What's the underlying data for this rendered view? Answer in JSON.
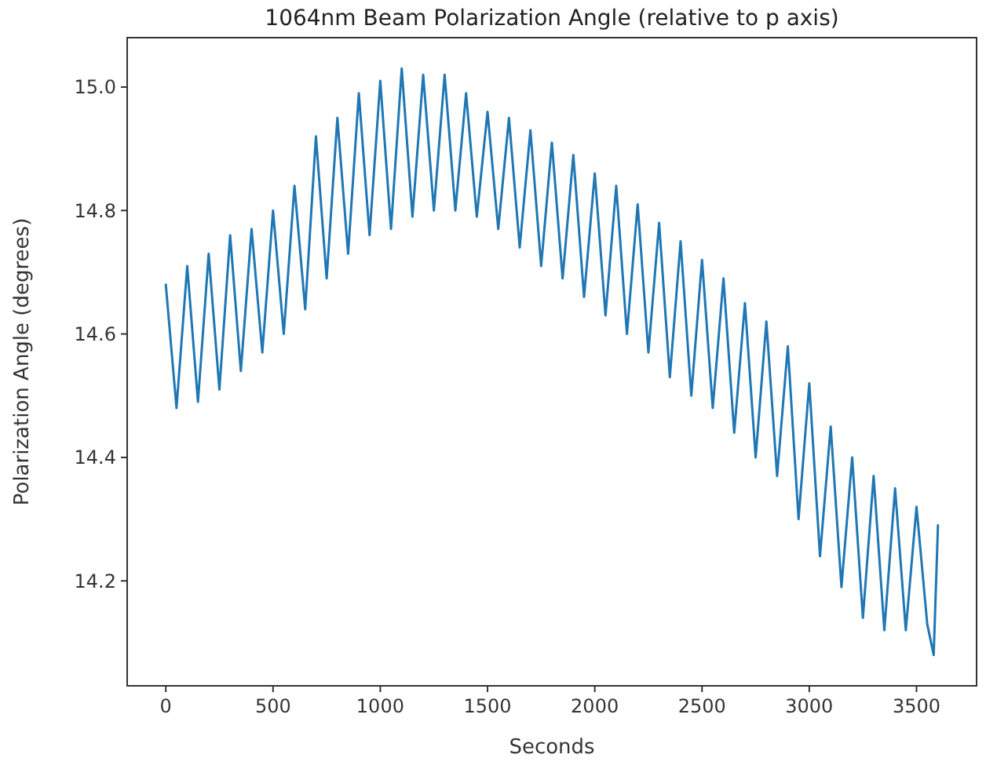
{
  "chart_data": {
    "type": "line",
    "title": "1064nm Beam Polarization Angle (relative to p axis)",
    "xlabel": "Seconds",
    "ylabel": "Polarization Angle (degrees)",
    "x": [
      0,
      50,
      100,
      150,
      200,
      250,
      300,
      350,
      400,
      450,
      500,
      550,
      600,
      650,
      700,
      750,
      800,
      850,
      900,
      950,
      1000,
      1050,
      1100,
      1150,
      1200,
      1250,
      1300,
      1350,
      1400,
      1450,
      1500,
      1550,
      1600,
      1650,
      1700,
      1750,
      1800,
      1850,
      1900,
      1950,
      2000,
      2050,
      2100,
      2150,
      2200,
      2250,
      2300,
      2350,
      2400,
      2450,
      2500,
      2550,
      2600,
      2650,
      2700,
      2750,
      2800,
      2850,
      2900,
      2950,
      3000,
      3050,
      3100,
      3150,
      3200,
      3250,
      3300,
      3350,
      3400,
      3450,
      3500,
      3550,
      3580,
      3600
    ],
    "series": [
      {
        "color": "#1f77b4",
        "values": [
          14.68,
          14.48,
          14.71,
          14.49,
          14.73,
          14.51,
          14.76,
          14.54,
          14.77,
          14.57,
          14.8,
          14.6,
          14.84,
          14.64,
          14.92,
          14.69,
          14.95,
          14.73,
          14.99,
          14.76,
          15.01,
          14.77,
          15.03,
          14.79,
          15.02,
          14.8,
          15.02,
          14.8,
          14.99,
          14.79,
          14.96,
          14.77,
          14.95,
          14.74,
          14.93,
          14.71,
          14.91,
          14.69,
          14.89,
          14.66,
          14.86,
          14.63,
          14.84,
          14.6,
          14.81,
          14.57,
          14.78,
          14.53,
          14.75,
          14.5,
          14.72,
          14.48,
          14.69,
          14.44,
          14.65,
          14.4,
          14.62,
          14.37,
          14.58,
          14.3,
          14.52,
          14.24,
          14.45,
          14.19,
          14.4,
          14.14,
          14.37,
          14.12,
          14.35,
          14.12,
          14.32,
          14.13,
          14.08,
          14.29
        ]
      }
    ],
    "xlim": [
      -180,
      3780
    ],
    "ylim": [
      14.03,
      15.08
    ],
    "xticks": [
      0,
      500,
      1000,
      1500,
      2000,
      2500,
      3000,
      3500
    ],
    "yticks": [
      14.2,
      14.4,
      14.6,
      14.8,
      {
        "value": 15,
        "label": "15.0"
      }
    ]
  }
}
